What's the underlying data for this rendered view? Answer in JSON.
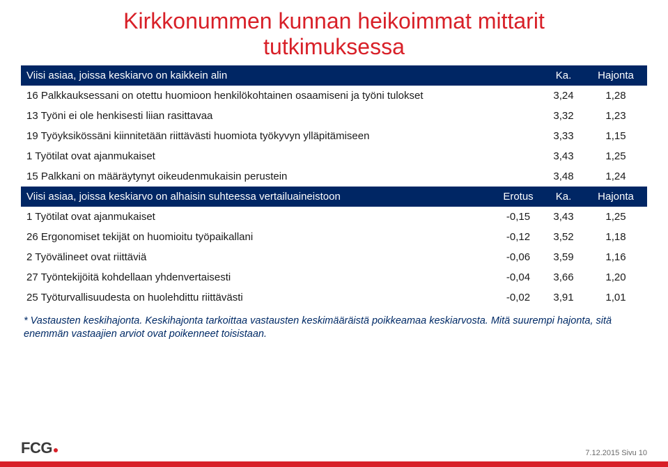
{
  "title_line1": "Kirkkonummen kunnan heikoimmat mittarit",
  "title_line2": "tutkimuksessa",
  "header1": {
    "label": "Viisi asiaa, joissa keskiarvo on kaikkein alin",
    "ka": "Ka.",
    "haj": "Hajonta"
  },
  "rows1": [
    {
      "label": "16 Palkkauksessani on otettu huomioon henkilökohtainen osaamiseni ja työni tulokset",
      "ka": "3,24",
      "haj": "1,28"
    },
    {
      "label": "13 Työni ei ole henkisesti liian rasittavaa",
      "ka": "3,32",
      "haj": "1,23"
    },
    {
      "label": "19 Työyksikössäni kiinnitetään riittävästi huomiota työkyvyn ylläpitämiseen",
      "ka": "3,33",
      "haj": "1,15"
    },
    {
      "label": "1 Työtilat ovat ajanmukaiset",
      "ka": "3,43",
      "haj": "1,25"
    },
    {
      "label": "15 Palkkani on määräytynyt oikeudenmukaisin perustein",
      "ka": "3,48",
      "haj": "1,24"
    }
  ],
  "header2": {
    "label": "Viisi asiaa, joissa keskiarvo on alhaisin suhteessa vertailuaineistoon",
    "erotus": "Erotus",
    "ka": "Ka.",
    "haj": "Hajonta"
  },
  "rows2": [
    {
      "label": "1 Työtilat ovat ajanmukaiset",
      "erotus": "-0,15",
      "ka": "3,43",
      "haj": "1,25"
    },
    {
      "label": "26 Ergonomiset tekijät on huomioitu työpaikallani",
      "erotus": "-0,12",
      "ka": "3,52",
      "haj": "1,18"
    },
    {
      "label": "2 Työvälineet ovat riittäviä",
      "erotus": "-0,06",
      "ka": "3,59",
      "haj": "1,16"
    },
    {
      "label": "27 Työntekijöitä kohdellaan yhdenvertaisesti",
      "erotus": "-0,04",
      "ka": "3,66",
      "haj": "1,20"
    },
    {
      "label": "25 Työturvallisuudesta on huolehdittu riittävästi",
      "erotus": "-0,02",
      "ka": "3,91",
      "haj": "1,01"
    }
  ],
  "footnote": "* Vastausten keskihajonta. Keskihajonta tarkoittaa vastausten keskimääräistä poikkeamaa keskiarvosta. Mitä suurempi hajonta, sitä enemmän vastaajien arviot ovat poikenneet toisistaan.",
  "logo_text": "FCG",
  "footer_date": "7.12.2015  Sivu 10",
  "colors": {
    "accent_red": "#d82028",
    "header_navy": "#002664",
    "footnote_blue": "#002a66",
    "body_text": "#1a1a1a",
    "footer_grey": "#6a6a6a"
  }
}
